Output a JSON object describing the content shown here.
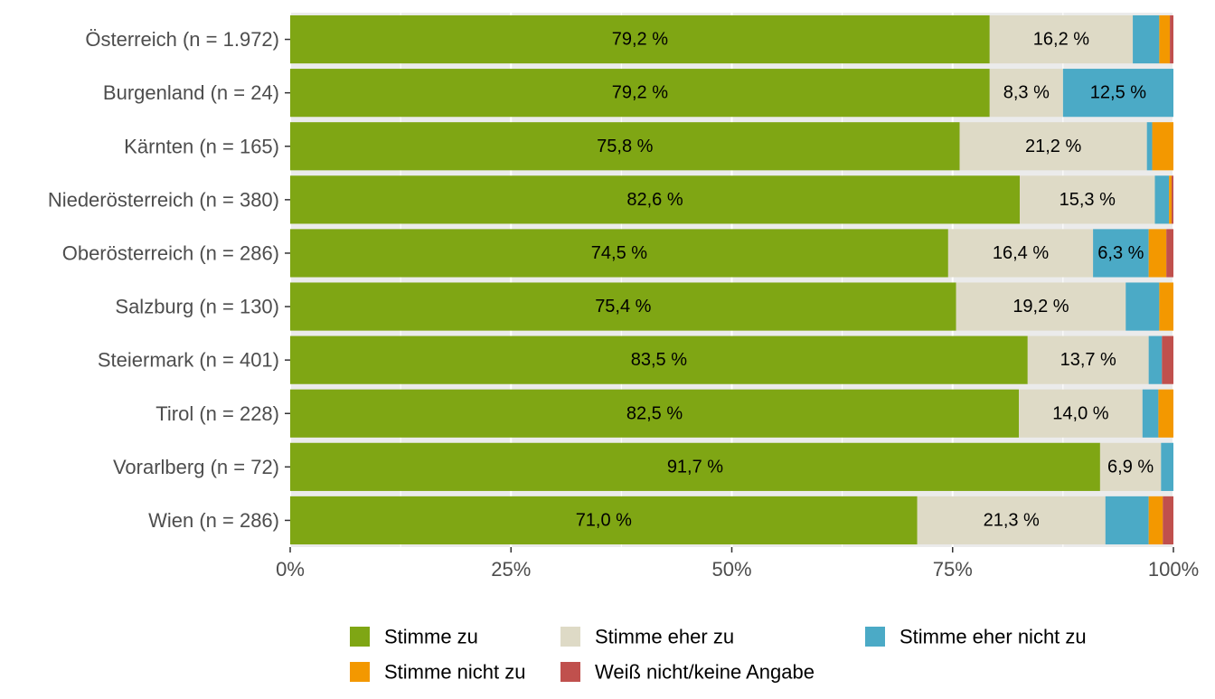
{
  "chart_data": {
    "type": "bar",
    "orientation": "horizontal",
    "stacked": "percent",
    "categories": [
      "Österreich (n = 1.972)",
      "Burgenland (n = 24)",
      "Kärnten (n = 165)",
      "Niederösterreich (n = 380)",
      "Oberösterreich (n = 286)",
      "Salzburg (n = 130)",
      "Steiermark (n = 401)",
      "Tirol (n = 228)",
      "Vorarlberg (n = 72)",
      "Wien (n = 286)"
    ],
    "series": [
      {
        "name": "Stimme zu",
        "color": "#7FA614",
        "values": [
          79.2,
          79.2,
          75.8,
          82.6,
          74.5,
          75.4,
          83.5,
          82.5,
          91.7,
          71.0
        ],
        "labels": [
          "79,2 %",
          "79,2 %",
          "75,8 %",
          "82,6 %",
          "74,5 %",
          "75,4 %",
          "83,5 %",
          "82,5 %",
          "91,7 %",
          "71,0 %"
        ]
      },
      {
        "name": "Stimme eher zu",
        "color": "#DEDAC6",
        "values": [
          16.2,
          8.3,
          21.2,
          15.3,
          16.4,
          19.2,
          13.7,
          14.0,
          6.9,
          21.3
        ],
        "labels": [
          "16,2 %",
          "8,3 %",
          "21,2 %",
          "15,3 %",
          "16,4 %",
          "19,2 %",
          "13,7 %",
          "14,0 %",
          "6,9 %",
          "21,3 %"
        ]
      },
      {
        "name": "Stimme eher nicht zu",
        "color": "#4BAAC6",
        "values": [
          3.0,
          12.5,
          0.6,
          1.6,
          6.3,
          3.8,
          1.5,
          1.8,
          1.4,
          4.9
        ],
        "labels": [
          "",
          "12,5 %",
          "",
          "",
          "6,3 %",
          "",
          "",
          "",
          "",
          ""
        ]
      },
      {
        "name": "Stimme nicht zu",
        "color": "#F39800",
        "values": [
          1.2,
          0.0,
          2.4,
          0.3,
          2.0,
          1.6,
          0.0,
          1.7,
          0.0,
          1.6
        ],
        "labels": [
          "",
          "",
          "",
          "",
          "",
          "",
          "",
          "",
          "",
          ""
        ]
      },
      {
        "name": "Weiß nicht/keine Angabe",
        "color": "#C0504D",
        "values": [
          0.4,
          0.0,
          0.0,
          0.2,
          0.8,
          0.0,
          1.3,
          0.0,
          0.0,
          1.2
        ],
        "labels": [
          "",
          "",
          "",
          "",
          "",
          "",
          "",
          "",
          "",
          ""
        ]
      }
    ],
    "x_ticks": [
      "0%",
      "25%",
      "50%",
      "75%",
      "100%"
    ],
    "x_tick_values": [
      0,
      25,
      50,
      75,
      100
    ],
    "xlim": [
      0,
      100
    ],
    "xlabel": "",
    "ylabel": "",
    "title": "",
    "grid": true,
    "legend_position": "bottom",
    "panel_background": "#EBEBEB"
  }
}
